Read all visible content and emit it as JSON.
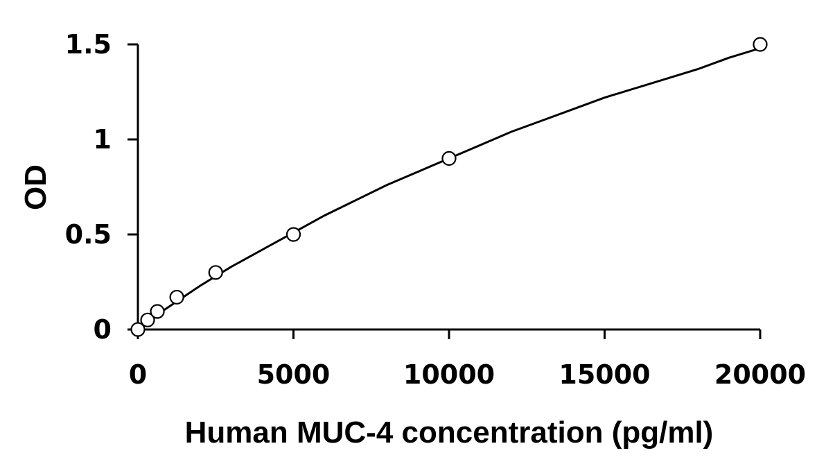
{
  "chart_data": {
    "type": "scatter",
    "title": "",
    "xlabel": "Human MUC-4 concentration (pg/ml)",
    "ylabel": "OD",
    "xlim": [
      0,
      20000
    ],
    "ylim": [
      0,
      1.5
    ],
    "x_ticks": [
      0,
      5000,
      10000,
      15000,
      20000
    ],
    "x_tick_labels": [
      "0",
      "5000",
      "10000",
      "15000",
      "20000"
    ],
    "y_ticks": [
      0,
      0.5,
      1,
      1.5
    ],
    "y_tick_labels": [
      "0",
      "0.5",
      "1",
      "1.5"
    ],
    "grid": false,
    "legend": "none",
    "points": {
      "x": [
        0,
        312.5,
        625,
        1250,
        2500,
        5000,
        10000,
        20000
      ],
      "y": [
        0.0,
        0.05,
        0.095,
        0.17,
        0.3,
        0.5,
        0.9,
        1.5
      ]
    },
    "fit_curve": {
      "type": "line",
      "x": [
        0,
        1000,
        2000,
        3000,
        4000,
        5000,
        6000,
        7000,
        8000,
        9000,
        10000,
        11000,
        12000,
        13000,
        14000,
        15000,
        16000,
        17000,
        18000,
        19000,
        20000
      ],
      "y": [
        0.01,
        0.12,
        0.23,
        0.33,
        0.42,
        0.51,
        0.6,
        0.68,
        0.76,
        0.83,
        0.9,
        0.97,
        1.04,
        1.1,
        1.16,
        1.22,
        1.27,
        1.32,
        1.37,
        1.43,
        1.48
      ]
    },
    "marker": "open-circle",
    "colors": {
      "marker": "#000000",
      "line": "#000000"
    }
  }
}
